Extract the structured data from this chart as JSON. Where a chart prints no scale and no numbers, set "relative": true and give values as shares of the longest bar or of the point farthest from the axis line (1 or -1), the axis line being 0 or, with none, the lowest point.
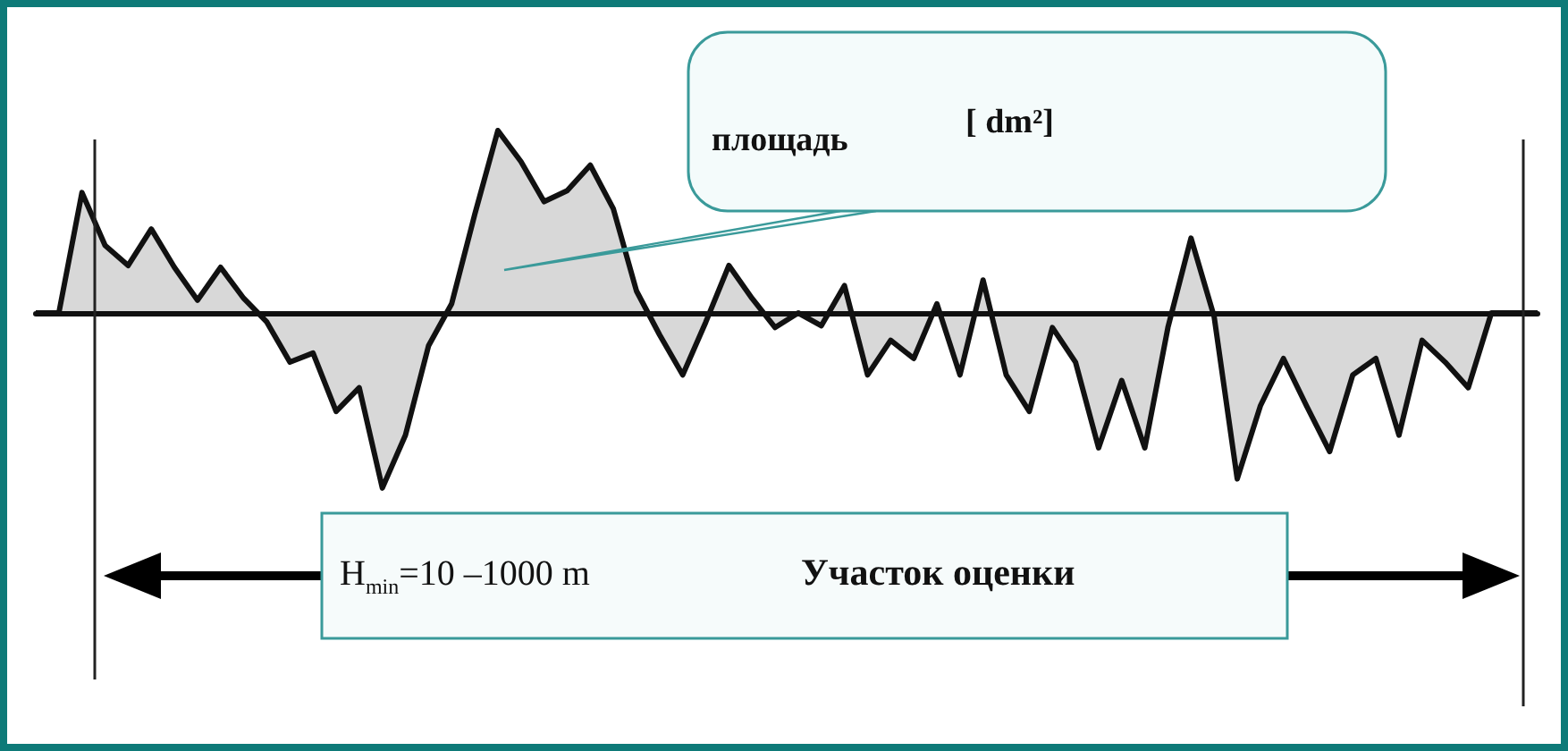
{
  "chart_data": {
    "type": "area",
    "relative": true,
    "grid": false,
    "marker": "none",
    "categories": [
      null,
      null,
      null,
      null,
      null,
      null,
      null,
      null,
      null,
      null,
      null,
      null,
      null,
      null,
      null,
      null,
      null,
      null,
      null,
      null,
      null,
      null,
      null,
      null,
      null,
      null,
      null,
      null,
      null,
      null,
      null,
      null,
      null,
      null,
      null,
      null,
      null,
      null,
      null,
      null,
      null,
      null,
      null,
      null,
      null,
      null,
      null,
      null,
      null,
      null,
      null,
      null,
      null,
      null,
      null,
      null,
      null,
      null,
      null,
      null,
      null,
      null,
      null,
      null,
      null,
      null
    ],
    "series": [
      {
        "color": "#111111",
        "values": [
          0,
          0,
          0.66,
          0.37,
          0.26,
          0.46,
          0.25,
          0.07,
          0.25,
          0.08,
          -0.05,
          -0.27,
          -0.22,
          -0.54,
          -0.41,
          -0.96,
          -0.67,
          -0.18,
          0.05,
          0.54,
          1,
          0.83,
          0.61,
          0.67,
          0.81,
          0.57,
          0.12,
          -0.12,
          -0.34,
          -0.05,
          0.26,
          0.08,
          -0.08,
          0,
          -0.07,
          0.15,
          -0.34,
          -0.15,
          -0.25,
          0.05,
          -0.34,
          0.18,
          -0.34,
          -0.54,
          -0.08,
          -0.27,
          -0.74,
          -0.37,
          -0.74,
          -0.08,
          0.41,
          -0.02,
          -0.91,
          -0.51,
          -0.25,
          -0.51,
          -0.76,
          -0.34,
          -0.25,
          -0.67,
          -0.15,
          -0.27,
          -0.41,
          0,
          0,
          0
        ]
      }
    ],
    "annotations": [
      "площадь",
      "[ dm²]",
      "H$_{min}$=10 –1000 m",
      "Участок оценки"
    ]
  }
}
